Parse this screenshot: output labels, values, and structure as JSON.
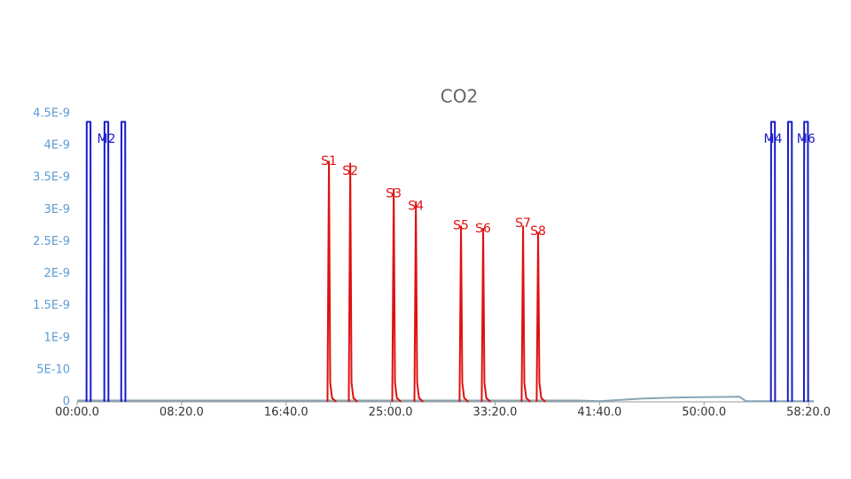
{
  "chart_data": {
    "type": "line",
    "title": "CO2",
    "xlim": [
      0,
      3525
    ],
    "ylim": [
      0,
      4.5e-09
    ],
    "xticks": [
      {
        "value": 0,
        "label": "00:00.0"
      },
      {
        "value": 500,
        "label": "08:20.0"
      },
      {
        "value": 1000,
        "label": "16:40.0"
      },
      {
        "value": 1500,
        "label": "25:00.0"
      },
      {
        "value": 2000,
        "label": "33:20.0"
      },
      {
        "value": 2500,
        "label": "41:40.0"
      },
      {
        "value": 3000,
        "label": "50:00.0"
      },
      {
        "value": 3500,
        "label": "58:20.0"
      }
    ],
    "yticks": [
      0,
      {
        "value": 5e-10,
        "label": "5E-10"
      },
      {
        "value": 1e-09,
        "label": "1E-9"
      },
      {
        "value": 1.5e-09,
        "label": "1.5E-9"
      },
      {
        "value": 2e-09,
        "label": "2E-9"
      },
      {
        "value": 2.5e-09,
        "label": "2.5E-9"
      },
      {
        "value": 3e-09,
        "label": "3E-9"
      },
      {
        "value": 3.5e-09,
        "label": "3.5E-9"
      },
      {
        "value": 4e-09,
        "label": "4E-9"
      },
      {
        "value": 4.5e-09,
        "label": "4.5E-9"
      }
    ],
    "series": [
      {
        "color": "#8aa5b5",
        "x": [
          0,
          1000,
          2400,
          2500,
          2700,
          2900,
          3170,
          3200,
          3525
        ],
        "values": [
          2e-11,
          2e-11,
          2e-11,
          1e-11,
          5e-11,
          7e-11,
          8e-11,
          1e-11,
          1e-11
        ]
      },
      {
        "color": "#1a1acc",
        "x": [
          45,
          46,
          64,
          65,
          null,
          130,
          131,
          149,
          150,
          null,
          211,
          212,
          230,
          231,
          null,
          3320,
          3321,
          3339,
          3340,
          null,
          3401,
          3402,
          3420,
          3421,
          null,
          3478,
          3479,
          3497,
          3498
        ],
        "values": [
          0,
          4.37e-09,
          4.37e-09,
          0,
          null,
          0,
          4.37e-09,
          4.37e-09,
          0,
          null,
          0,
          4.37e-09,
          4.37e-09,
          0,
          null,
          0,
          4.37e-09,
          4.37e-09,
          0,
          null,
          0,
          4.37e-09,
          4.37e-09,
          0,
          null,
          0,
          4.37e-09,
          4.37e-09,
          0
        ]
      },
      {
        "color": "#e01010",
        "x": [
          1198,
          1205,
          1211,
          1220,
          1240,
          null,
          1300,
          1307,
          1313,
          1322,
          1342,
          null,
          1508,
          1515,
          1521,
          1530,
          1550,
          null,
          1614,
          1621,
          1627,
          1636,
          1656,
          null,
          1830,
          1837,
          1843,
          1852,
          1872,
          null,
          1936,
          1943,
          1949,
          1958,
          1978,
          null,
          2127,
          2134,
          2140,
          2149,
          2169,
          null,
          2199,
          2206,
          2212,
          2221,
          2241
        ],
        "values": [
          0,
          3.75e-09,
          3e-10,
          6e-11,
          0,
          null,
          0,
          3.72e-09,
          3e-10,
          6e-11,
          0,
          null,
          0,
          3.32e-09,
          3e-10,
          6e-11,
          0,
          null,
          0,
          3.12e-09,
          3e-10,
          6e-11,
          0,
          null,
          0,
          2.74e-09,
          3e-10,
          6e-11,
          0,
          null,
          0,
          2.7e-09,
          3e-10,
          6e-11,
          0,
          null,
          0,
          2.74e-09,
          3e-10,
          6e-11,
          0,
          null,
          0,
          2.64e-09,
          3e-10,
          6e-11,
          0
        ]
      }
    ],
    "annotations": [
      {
        "text": "M2",
        "x": 140,
        "y": 4.1e-09,
        "color": "#1a1acc"
      },
      {
        "text": "M4",
        "x": 3330,
        "y": 4.1e-09,
        "color": "#1a1acc"
      },
      {
        "text": "M6",
        "x": 3488,
        "y": 4.1e-09,
        "color": "#1a1acc"
      },
      {
        "text": "S1",
        "x": 1205,
        "y": 3.75e-09,
        "color": "#e01010"
      },
      {
        "text": "S2",
        "x": 1307,
        "y": 3.6e-09,
        "color": "#e01010"
      },
      {
        "text": "S3",
        "x": 1515,
        "y": 3.25e-09,
        "color": "#e01010"
      },
      {
        "text": "S4",
        "x": 1621,
        "y": 3.05e-09,
        "color": "#e01010"
      },
      {
        "text": "S5",
        "x": 1837,
        "y": 2.75e-09,
        "color": "#e01010"
      },
      {
        "text": "S6",
        "x": 1943,
        "y": 2.7e-09,
        "color": "#e01010"
      },
      {
        "text": "S7",
        "x": 2134,
        "y": 2.78e-09,
        "color": "#e01010"
      },
      {
        "text": "S8",
        "x": 2206,
        "y": 2.66e-09,
        "color": "#e01010"
      }
    ]
  }
}
